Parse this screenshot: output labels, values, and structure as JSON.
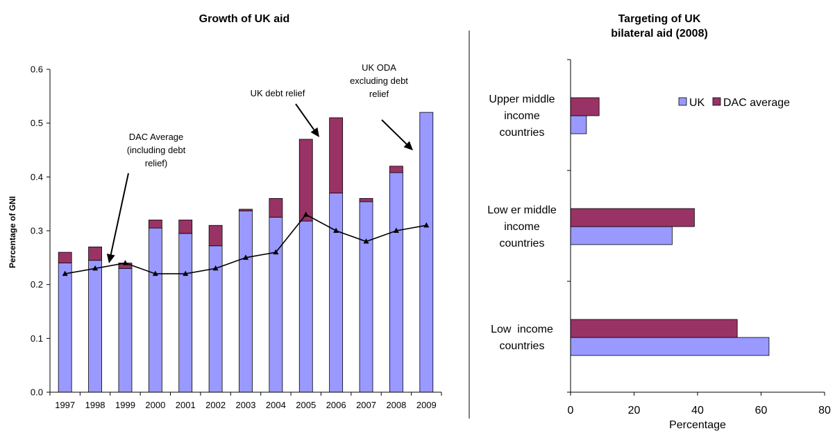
{
  "chart_data": [
    {
      "type": "bar",
      "title": "Growth of UK aid",
      "xlabel": "",
      "ylabel": "Percentage of GNI",
      "ylim": [
        0,
        0.6
      ],
      "yticks": [
        "0.0",
        "0.1",
        "0.2",
        "0.3",
        "0.4",
        "0.5",
        "0.6"
      ],
      "categories": [
        "1997",
        "1998",
        "1999",
        "2000",
        "2001",
        "2002",
        "2003",
        "2004",
        "2005",
        "2006",
        "2007",
        "2008",
        "2009"
      ],
      "series": [
        {
          "kind": "stacked-bar",
          "values": [
            0.24,
            0.245,
            0.23,
            0.305,
            0.295,
            0.272,
            0.337,
            0.325,
            0.318,
            0.37,
            0.354,
            0.408,
            0.52
          ],
          "color": "#9999FF"
        },
        {
          "kind": "stacked-bar",
          "values": [
            0.02,
            0.025,
            0.01,
            0.015,
            0.025,
            0.038,
            0.003,
            0.035,
            0.152,
            0.14,
            0.006,
            0.012,
            0.0
          ],
          "color": "#993366"
        },
        {
          "kind": "line",
          "values": [
            0.22,
            0.23,
            0.24,
            0.22,
            0.22,
            0.23,
            0.25,
            0.26,
            0.33,
            0.3,
            0.28,
            0.3,
            0.31
          ],
          "color": "#000000"
        }
      ],
      "annotations": {
        "dac": [
          "DAC Average",
          "(including debt",
          "relief)"
        ],
        "debt": [
          "UK debt relief"
        ],
        "oda": [
          "UK ODA",
          "excluding debt",
          "relief"
        ]
      }
    },
    {
      "type": "bar",
      "orientation": "horizontal",
      "title_lines": [
        "Targeting of UK",
        "bilateral aid (2008)"
      ],
      "xlabel": "Percentage",
      "xlim": [
        0,
        80
      ],
      "xticks": [
        "0",
        "20",
        "40",
        "60",
        "80"
      ],
      "categories": [
        [
          "Low  income",
          "countries"
        ],
        [
          "Low er middle",
          "income",
          "countries"
        ],
        [
          "Upper middle",
          "income",
          "countries"
        ]
      ],
      "series": [
        {
          "name": "UK",
          "values": [
            62.5,
            32,
            5
          ],
          "color": "#9999FF"
        },
        {
          "name": "DAC average",
          "values": [
            52.5,
            39,
            9
          ],
          "color": "#993366"
        }
      ],
      "legend_position": "top-right"
    }
  ]
}
